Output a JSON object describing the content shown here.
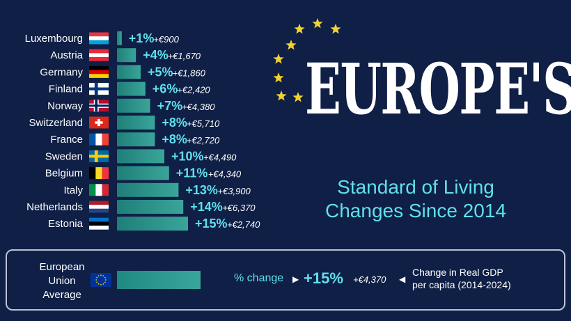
{
  "chart_data": {
    "type": "bar",
    "orientation": "horizontal",
    "title": "EUROPE'S",
    "subtitle": "Standard of Living Changes Since 2014",
    "categories": [
      "Luxembourg",
      "Austria",
      "Germany",
      "Finland",
      "Norway",
      "Switzerland",
      "France",
      "Sweden",
      "Belgium",
      "Italy",
      "Netherlands",
      "Estonia"
    ],
    "series": [
      {
        "values": [
          1,
          4,
          5,
          6,
          7,
          8,
          8,
          10,
          11,
          13,
          14,
          15
        ]
      }
    ],
    "value_labels": [
      "+1%",
      "+4%",
      "+5%",
      "+6%",
      "+7%",
      "+8%",
      "+8%",
      "+10%",
      "+11%",
      "+13%",
      "+14%",
      "+15%"
    ],
    "gdp_change_labels": [
      "+€900",
      "+€1,670",
      "+€1,860",
      "+€2,420",
      "+€4,380",
      "+€5,710",
      "+€2,720",
      "+€4,490",
      "+€4,340",
      "+€3,900",
      "+€6,370",
      "+€2,740"
    ],
    "xlim": [
      0,
      15
    ],
    "grid": false,
    "bar_color": "#3aa59a"
  },
  "eu_average": {
    "label_lines": [
      "European",
      "Union",
      "Average"
    ],
    "value": 15,
    "pct_label": "+15%",
    "gdp_label": "+€4,370",
    "pct_caption": "% change",
    "gdp_caption_lines": [
      "Change in Real GDP",
      "per capita (2014-2024)"
    ]
  },
  "flags": {
    "Luxembourg": "tricolor-horizontal-red-white-lightblue",
    "Austria": "triband-red-white-red",
    "Germany": "tricolor-black-red-gold",
    "Finland": "nordic-cross-blue-on-white",
    "Norway": "nordic-cross-red-white-blue",
    "Switzerland": "white-cross-on-red",
    "France": "tricolor-vertical-blue-white-red",
    "Sweden": "nordic-cross-yellow-on-blue",
    "Belgium": "tricolor-vertical-black-yellow-red",
    "Italy": "tricolor-vertical-green-white-red",
    "Netherlands": "tricolor-horizontal-red-white-blue",
    "Estonia": "tricolor-horizontal-blue-black-white",
    "European Union": "eu-star-circle"
  },
  "colors": {
    "background": "#0f1f45",
    "accent": "#5fe0ec",
    "bar": "#3aa59a",
    "star": "#f2d22e"
  },
  "decoration": {
    "star_icon": "star-icon",
    "star_count": 8
  }
}
